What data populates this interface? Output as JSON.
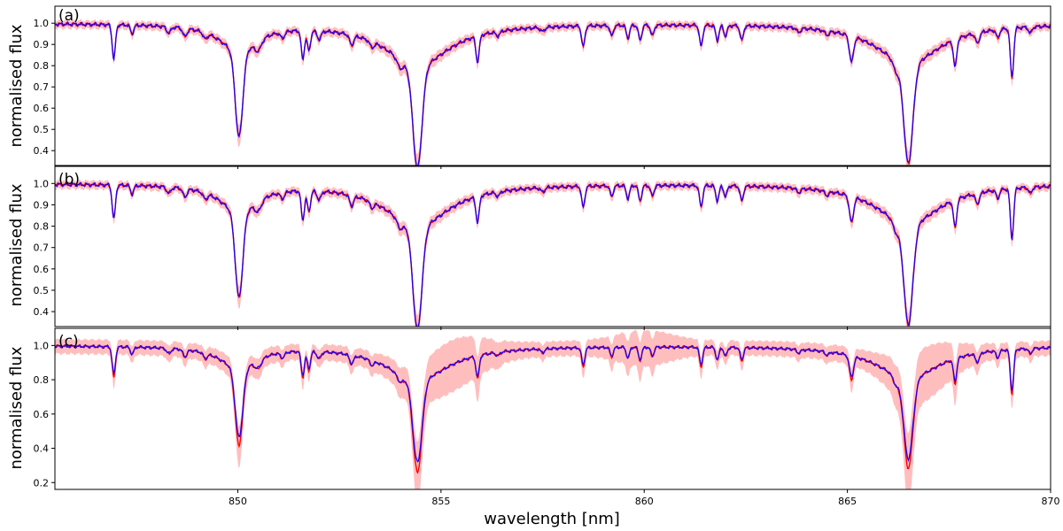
{
  "colors": {
    "model": "#ff0000",
    "band": "#ffb3b3",
    "observed": "#2200ee",
    "axis": "#000000"
  },
  "chart_data": [
    {
      "type": "line",
      "panel_label": "(a)",
      "ylabel": "normalised flux",
      "xlabel": "",
      "xlim": [
        845.5,
        870
      ],
      "ylim": [
        0.33,
        1.08
      ],
      "yticks": [
        0.4,
        0.5,
        0.6,
        0.7,
        0.8,
        0.9,
        1.0
      ],
      "xticks": [],
      "band_scale": 1.0,
      "series": [
        {
          "role": "observed",
          "style": "line"
        },
        {
          "role": "model",
          "style": "line"
        },
        {
          "role": "band",
          "style": "band"
        }
      ]
    },
    {
      "type": "line",
      "panel_label": "(b)",
      "ylabel": "normalised flux",
      "xlabel": "",
      "xlim": [
        845.5,
        870
      ],
      "ylim": [
        0.33,
        1.08
      ],
      "yticks": [
        0.4,
        0.5,
        0.6,
        0.7,
        0.8,
        0.9,
        1.0
      ],
      "xticks": [],
      "band_scale": 1.0,
      "series": [
        {
          "role": "observed",
          "style": "line"
        },
        {
          "role": "model",
          "style": "line"
        },
        {
          "role": "band",
          "style": "band"
        }
      ]
    },
    {
      "type": "line",
      "panel_label": "(c)",
      "ylabel": "normalised flux",
      "xlabel": "wavelength [nm]",
      "xlim": [
        845.5,
        870
      ],
      "ylim": [
        0.16,
        1.1
      ],
      "yticks": [
        0.2,
        0.4,
        0.6,
        0.8,
        1.0
      ],
      "xticks": [
        850,
        855,
        860,
        865,
        870
      ],
      "band_scale": 2.2,
      "series": [
        {
          "role": "observed",
          "style": "line"
        },
        {
          "role": "model",
          "style": "line"
        },
        {
          "role": "band",
          "style": "band"
        }
      ]
    }
  ],
  "spectrum_lines": [
    {
      "center": 846.95,
      "depth": 0.16,
      "width": 0.04
    },
    {
      "center": 847.4,
      "depth": 0.04,
      "width": 0.04
    },
    {
      "center": 848.3,
      "depth": 0.03,
      "width": 0.05
    },
    {
      "center": 848.7,
      "depth": 0.04,
      "width": 0.05
    },
    {
      "center": 849.2,
      "depth": 0.03,
      "width": 0.05
    },
    {
      "center": 850.03,
      "depth": 0.46,
      "width": 0.09
    },
    {
      "center": 850.5,
      "depth": 0.05,
      "width": 0.08
    },
    {
      "center": 851.1,
      "depth": 0.03,
      "width": 0.05
    },
    {
      "center": 851.6,
      "depth": 0.14,
      "width": 0.04
    },
    {
      "center": 851.75,
      "depth": 0.1,
      "width": 0.04
    },
    {
      "center": 852.0,
      "depth": 0.04,
      "width": 0.05
    },
    {
      "center": 852.8,
      "depth": 0.05,
      "width": 0.05
    },
    {
      "center": 853.3,
      "depth": 0.03,
      "width": 0.05
    },
    {
      "center": 854.0,
      "depth": 0.05,
      "width": 0.08
    },
    {
      "center": 854.42,
      "depth": 0.6,
      "width": 0.11
    },
    {
      "center": 855.9,
      "depth": 0.13,
      "width": 0.04
    },
    {
      "center": 856.4,
      "depth": 0.02,
      "width": 0.05
    },
    {
      "center": 857.5,
      "depth": 0.02,
      "width": 0.05
    },
    {
      "center": 858.5,
      "depth": 0.1,
      "width": 0.04
    },
    {
      "center": 859.2,
      "depth": 0.05,
      "width": 0.04
    },
    {
      "center": 859.6,
      "depth": 0.06,
      "width": 0.04
    },
    {
      "center": 859.9,
      "depth": 0.07,
      "width": 0.04
    },
    {
      "center": 860.2,
      "depth": 0.05,
      "width": 0.04
    },
    {
      "center": 861.4,
      "depth": 0.1,
      "width": 0.04
    },
    {
      "center": 861.8,
      "depth": 0.07,
      "width": 0.04
    },
    {
      "center": 862.0,
      "depth": 0.05,
      "width": 0.04
    },
    {
      "center": 862.4,
      "depth": 0.07,
      "width": 0.04
    },
    {
      "center": 863.8,
      "depth": 0.02,
      "width": 0.05
    },
    {
      "center": 864.5,
      "depth": 0.02,
      "width": 0.05
    },
    {
      "center": 865.1,
      "depth": 0.13,
      "width": 0.05
    },
    {
      "center": 866.2,
      "depth": 0.06,
      "width": 0.08
    },
    {
      "center": 866.5,
      "depth": 0.58,
      "width": 0.11
    },
    {
      "center": 867.65,
      "depth": 0.14,
      "width": 0.04
    },
    {
      "center": 868.2,
      "depth": 0.05,
      "width": 0.05
    },
    {
      "center": 868.7,
      "depth": 0.04,
      "width": 0.04
    },
    {
      "center": 869.05,
      "depth": 0.24,
      "width": 0.04
    },
    {
      "center": 869.5,
      "depth": 0.03,
      "width": 0.04
    }
  ],
  "wing_lines": [
    {
      "center": 850.03,
      "depth": 0.13,
      "width": 0.55
    },
    {
      "center": 854.42,
      "depth": 0.2,
      "width": 0.95
    },
    {
      "center": 866.5,
      "depth": 0.19,
      "width": 0.95
    }
  ]
}
